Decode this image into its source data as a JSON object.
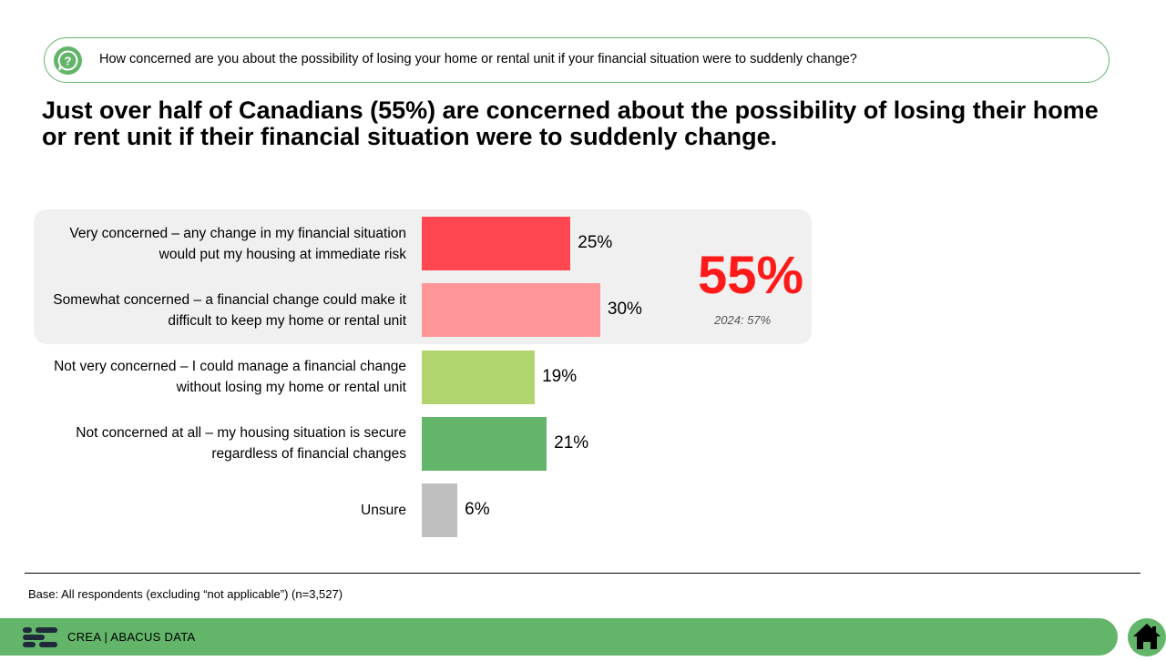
{
  "question": {
    "icon": "question-bubble-icon",
    "text": "How concerned are you about the possibility of losing your home or rental unit if your financial situation were to suddenly change?"
  },
  "headline": "Just over half of Canadians (55%) are concerned about the possibility of losing their home or rent unit if their financial situation were to suddenly change.",
  "chart_data": {
    "type": "bar",
    "orientation": "horizontal",
    "categories": [
      "Very concerned – any change in my financial situation would put my housing at immediate risk",
      "Somewhat concerned – a financial change could make it difficult to keep my home or rental unit",
      "Not very concerned – I could manage a financial change without losing my home or rental unit",
      "Not concerned at all – my housing situation is secure regardless of financial changes",
      "Unsure"
    ],
    "category_lines": [
      [
        "Very concerned – any change in my financial situation",
        "would put my housing at immediate risk"
      ],
      [
        "Somewhat concerned – a financial change could make it",
        "difficult to keep my home or rental unit"
      ],
      [
        "Not very concerned – I could manage a financial change",
        "without losing my home or rental unit"
      ],
      [
        "Not concerned at all – my housing situation is secure",
        "regardless of financial changes"
      ],
      [
        "Unsure"
      ]
    ],
    "values": [
      25,
      30,
      19,
      21,
      6
    ],
    "value_labels": [
      "25%",
      "30%",
      "19%",
      "21%",
      "6%"
    ],
    "colors": [
      "#ff4751",
      "#ff9799",
      "#b1d46f",
      "#63b56a",
      "#bfbfbf"
    ],
    "value_max": 30,
    "highlight": {
      "categories_included": [
        0,
        1
      ],
      "total_label": "55%",
      "total_color": "#ff1a1a",
      "previous": "2024: 57%"
    },
    "title": "",
    "xlabel": "",
    "ylabel": "",
    "grid": false,
    "legend": "none"
  },
  "base_note": "Base: All respondents (excluding “not applicable”) (n=3,527)",
  "footer": {
    "logo_icon": "abacus-logo-icon",
    "text": "CREA | ABACUS DATA",
    "home_icon": "home-icon",
    "accent": "#63b56a"
  }
}
